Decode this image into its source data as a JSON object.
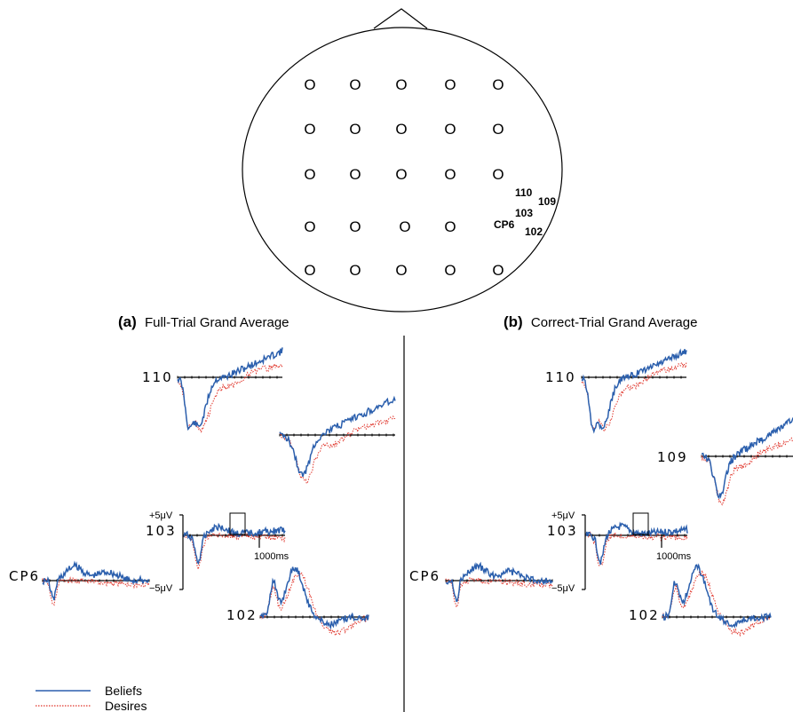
{
  "head": {
    "electrodes": [
      [
        "O",
        "O",
        "O",
        "O",
        "O"
      ],
      [
        "O",
        "O",
        "O",
        "O",
        "O"
      ],
      [
        "O",
        "O",
        "O",
        "O",
        "O"
      ],
      [
        "O",
        "O",
        "O",
        "O"
      ],
      [
        "O",
        "O",
        "O",
        "O",
        "O"
      ]
    ],
    "channels": {
      "c110": "110",
      "c109": "109",
      "c103": "103",
      "cp6": "CP6",
      "c102": "102"
    }
  },
  "panels": [
    {
      "tag": "(a)",
      "title": "Full-Trial Grand Average",
      "waves": {
        "w110": "110",
        "w103": "103",
        "wcp6": "CP6",
        "w102": "102"
      }
    },
    {
      "tag": "(b)",
      "title": "Correct-Trial Grand Average",
      "waves": {
        "w110": "110",
        "w109": "109",
        "w103": "103",
        "wcp6": "CP6",
        "w102": "102"
      }
    }
  ],
  "scale": {
    "plus": "+5μV",
    "minus": "−5μV",
    "time": "1000ms"
  },
  "legend": {
    "beliefs": "Beliefs",
    "desires": "Desires",
    "beliefs_color": "#2b5fad",
    "desires_color": "#e0352b"
  }
}
